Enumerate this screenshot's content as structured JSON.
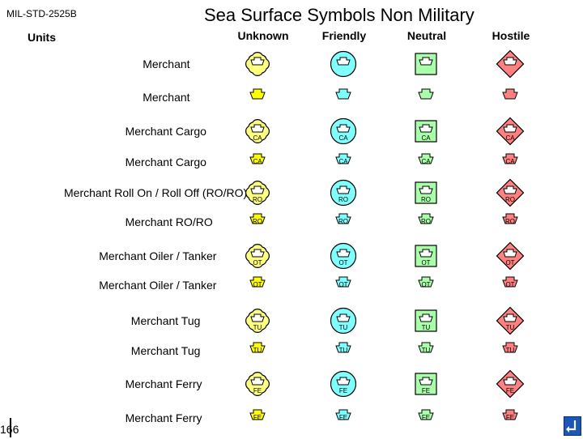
{
  "header": {
    "standard": "MIL-STD-2525B",
    "title": "Sea Surface Symbols Non Military",
    "units_label": "Units"
  },
  "columns": [
    {
      "label": "Unknown",
      "fill": "#ffff80",
      "shape": "quatrefoil"
    },
    {
      "label": "Friendly",
      "fill": "#80ffff",
      "shape": "circle"
    },
    {
      "label": "Neutral",
      "fill": "#aaffaa",
      "shape": "square"
    },
    {
      "label": "Hostile",
      "fill": "#ff8080",
      "shape": "diamond"
    }
  ],
  "rows": [
    {
      "label": "Merchant",
      "code": "",
      "frame": true
    },
    {
      "label": "Merchant",
      "code": "",
      "frame": false
    },
    {
      "label": "Merchant Cargo",
      "code": "CA",
      "frame": true
    },
    {
      "label": "Merchant Cargo",
      "code": "CA",
      "frame": false
    },
    {
      "label": "Merchant Roll On / Roll Off (RO/RO)",
      "code": "RO",
      "frame": true
    },
    {
      "label": "Merchant RO/RO",
      "code": "RO",
      "frame": false
    },
    {
      "label": "Merchant Oiler / Tanker",
      "code": "OT",
      "frame": true
    },
    {
      "label": "Merchant Oiler / Tanker",
      "code": "OT",
      "frame": false
    },
    {
      "label": "Merchant Tug",
      "code": "TU",
      "frame": true
    },
    {
      "label": "Merchant Tug",
      "code": "TU",
      "frame": false
    },
    {
      "label": "Merchant Ferry",
      "code": "FE",
      "frame": true
    },
    {
      "label": "Merchant Ferry",
      "code": "FE",
      "frame": false
    }
  ],
  "footer": {
    "page_number": "166",
    "nav_icon": "return-arrow-icon"
  }
}
